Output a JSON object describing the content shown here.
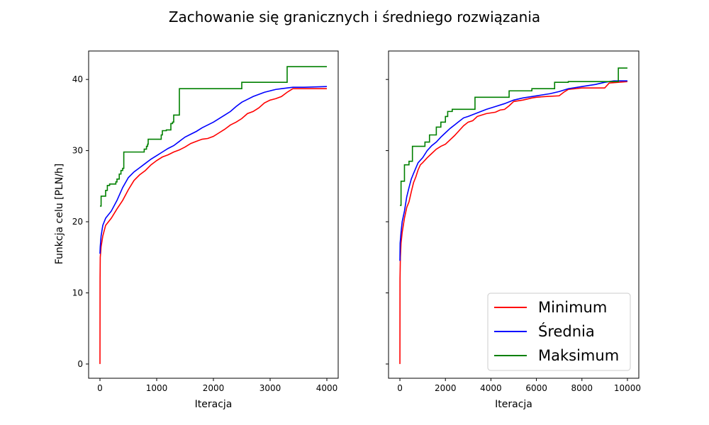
{
  "figure": {
    "title": "Zachowanie się granicznych i średniego rozwiązania",
    "ylabel": "Funkcja celu [PLN/h]"
  },
  "colors": {
    "Minimum": "#ff0000",
    "Średnia": "#0000ff",
    "Maksimum": "#008000"
  },
  "legend": {
    "entries": [
      "Minimum",
      "Średnia",
      "Maksimum"
    ],
    "placement": "lower-right"
  },
  "chart_data": [
    {
      "type": "line",
      "xlabel": "Iteracja",
      "ylabel": "Funkcja celu [PLN/h]",
      "xlim": [
        -200,
        4200
      ],
      "ylim": [
        -2,
        44
      ],
      "xticks": [
        0,
        1000,
        2000,
        3000,
        4000
      ],
      "yticks": [
        0,
        10,
        20,
        30,
        40
      ],
      "series": [
        {
          "name": "Minimum",
          "step": false,
          "points": [
            [
              0,
              0
            ],
            [
              2,
              12
            ],
            [
              5,
              15
            ],
            [
              20,
              16.5
            ],
            [
              50,
              18
            ],
            [
              100,
              19.5
            ],
            [
              200,
              20.5
            ],
            [
              300,
              21.8
            ],
            [
              400,
              23
            ],
            [
              500,
              24.5
            ],
            [
              600,
              25.8
            ],
            [
              700,
              26.6
            ],
            [
              800,
              27.2
            ],
            [
              900,
              28
            ],
            [
              1000,
              28.6
            ],
            [
              1100,
              29.1
            ],
            [
              1200,
              29.4
            ],
            [
              1300,
              29.8
            ],
            [
              1400,
              30.1
            ],
            [
              1500,
              30.5
            ],
            [
              1600,
              31
            ],
            [
              1700,
              31.3
            ],
            [
              1800,
              31.6
            ],
            [
              1900,
              31.7
            ],
            [
              2000,
              32
            ],
            [
              2100,
              32.5
            ],
            [
              2200,
              33
            ],
            [
              2300,
              33.6
            ],
            [
              2400,
              34
            ],
            [
              2500,
              34.5
            ],
            [
              2600,
              35.2
            ],
            [
              2700,
              35.5
            ],
            [
              2800,
              36
            ],
            [
              2900,
              36.7
            ],
            [
              3000,
              37.1
            ],
            [
              3100,
              37.3
            ],
            [
              3200,
              37.6
            ],
            [
              3300,
              38.2
            ],
            [
              3400,
              38.7
            ],
            [
              3500,
              38.7
            ],
            [
              4000,
              38.7
            ]
          ]
        },
        {
          "name": "Średnia",
          "step": false,
          "points": [
            [
              0,
              15.5
            ],
            [
              5,
              16.5
            ],
            [
              20,
              18
            ],
            [
              50,
              19.5
            ],
            [
              100,
              20.5
            ],
            [
              200,
              21.5
            ],
            [
              300,
              23
            ],
            [
              400,
              24.8
            ],
            [
              500,
              26.2
            ],
            [
              600,
              27
            ],
            [
              700,
              27.6
            ],
            [
              800,
              28.2
            ],
            [
              900,
              28.8
            ],
            [
              1000,
              29.3
            ],
            [
              1100,
              29.8
            ],
            [
              1200,
              30.3
            ],
            [
              1300,
              30.7
            ],
            [
              1400,
              31.3
            ],
            [
              1500,
              31.9
            ],
            [
              1600,
              32.3
            ],
            [
              1700,
              32.7
            ],
            [
              1800,
              33.2
            ],
            [
              1900,
              33.6
            ],
            [
              2000,
              34
            ],
            [
              2100,
              34.5
            ],
            [
              2200,
              35
            ],
            [
              2300,
              35.5
            ],
            [
              2400,
              36.2
            ],
            [
              2500,
              36.8
            ],
            [
              2600,
              37.2
            ],
            [
              2700,
              37.6
            ],
            [
              2800,
              37.9
            ],
            [
              2900,
              38.2
            ],
            [
              3000,
              38.4
            ],
            [
              3100,
              38.6
            ],
            [
              3200,
              38.7
            ],
            [
              3300,
              38.8
            ],
            [
              3400,
              38.9
            ],
            [
              3600,
              38.9
            ],
            [
              4000,
              39
            ]
          ]
        },
        {
          "name": "Maksimum",
          "step": true,
          "points": [
            [
              0,
              22.2
            ],
            [
              20,
              23.6
            ],
            [
              100,
              24.4
            ],
            [
              130,
              25.1
            ],
            [
              170,
              25.3
            ],
            [
              280,
              25.6
            ],
            [
              300,
              26
            ],
            [
              340,
              26.7
            ],
            [
              370,
              27.2
            ],
            [
              400,
              27.5
            ],
            [
              420,
              29.8
            ],
            [
              780,
              30.2
            ],
            [
              820,
              30.6
            ],
            [
              840,
              30.9
            ],
            [
              850,
              31.6
            ],
            [
              1080,
              32.2
            ],
            [
              1100,
              32.8
            ],
            [
              1170,
              32.9
            ],
            [
              1250,
              33.8
            ],
            [
              1280,
              34
            ],
            [
              1300,
              35
            ],
            [
              1400,
              38.7
            ],
            [
              2500,
              39.6
            ],
            [
              3300,
              41.8
            ],
            [
              4000,
              41.8
            ]
          ]
        }
      ]
    },
    {
      "type": "line",
      "xlabel": "Iteracja",
      "ylabel": "",
      "xlim": [
        -500,
        10500
      ],
      "ylim": [
        -2,
        44
      ],
      "xticks": [
        0,
        2000,
        4000,
        6000,
        8000,
        10000
      ],
      "yticks": [
        0,
        10,
        20,
        30,
        40
      ],
      "series": [
        {
          "name": "Minimum",
          "step": false,
          "points": [
            [
              0,
              0
            ],
            [
              5,
              12
            ],
            [
              20,
              15
            ],
            [
              50,
              17
            ],
            [
              100,
              18.5
            ],
            [
              200,
              20.5
            ],
            [
              300,
              22
            ],
            [
              400,
              22.8
            ],
            [
              500,
              24.2
            ],
            [
              600,
              25.5
            ],
            [
              700,
              26.3
            ],
            [
              800,
              27.3
            ],
            [
              900,
              28
            ],
            [
              1000,
              28.3
            ],
            [
              1200,
              29
            ],
            [
              1400,
              29.6
            ],
            [
              1600,
              30.2
            ],
            [
              1800,
              30.6
            ],
            [
              2000,
              30.9
            ],
            [
              2200,
              31.5
            ],
            [
              2400,
              32.1
            ],
            [
              2600,
              32.8
            ],
            [
              2800,
              33.5
            ],
            [
              3000,
              34
            ],
            [
              3200,
              34.2
            ],
            [
              3400,
              34.8
            ],
            [
              3600,
              35
            ],
            [
              3800,
              35.2
            ],
            [
              4000,
              35.3
            ],
            [
              4200,
              35.4
            ],
            [
              4400,
              35.7
            ],
            [
              4600,
              35.8
            ],
            [
              4800,
              36.3
            ],
            [
              5000,
              36.9
            ],
            [
              5400,
              37.1
            ],
            [
              5800,
              37.4
            ],
            [
              6000,
              37.5
            ],
            [
              6400,
              37.6
            ],
            [
              7000,
              37.7
            ],
            [
              7200,
              38.2
            ],
            [
              7400,
              38.6
            ],
            [
              8000,
              38.8
            ],
            [
              9000,
              38.8
            ],
            [
              9200,
              39.5
            ],
            [
              10000,
              39.7
            ]
          ]
        },
        {
          "name": "Średnia",
          "step": false,
          "points": [
            [
              0,
              14.5
            ],
            [
              10,
              17
            ],
            [
              50,
              18.5
            ],
            [
              100,
              20
            ],
            [
              200,
              21.5
            ],
            [
              300,
              23.5
            ],
            [
              400,
              24.8
            ],
            [
              500,
              26
            ],
            [
              600,
              26.8
            ],
            [
              800,
              28.3
            ],
            [
              1000,
              29
            ],
            [
              1200,
              30
            ],
            [
              1400,
              30.7
            ],
            [
              1600,
              31.2
            ],
            [
              1800,
              31.9
            ],
            [
              2000,
              32.5
            ],
            [
              2200,
              33.1
            ],
            [
              2400,
              33.6
            ],
            [
              2600,
              34.1
            ],
            [
              2800,
              34.6
            ],
            [
              3000,
              34.8
            ],
            [
              3400,
              35.3
            ],
            [
              3800,
              35.8
            ],
            [
              4200,
              36.2
            ],
            [
              4600,
              36.6
            ],
            [
              5000,
              37.1
            ],
            [
              5400,
              37.4
            ],
            [
              5800,
              37.6
            ],
            [
              6200,
              37.8
            ],
            [
              6600,
              38
            ],
            [
              7000,
              38.3
            ],
            [
              7400,
              38.7
            ],
            [
              8000,
              39
            ],
            [
              8600,
              39.3
            ],
            [
              9000,
              39.6
            ],
            [
              9400,
              39.8
            ],
            [
              10000,
              39.8
            ]
          ]
        },
        {
          "name": "Maksimum",
          "step": true,
          "points": [
            [
              0,
              22.3
            ],
            [
              50,
              25.7
            ],
            [
              200,
              28
            ],
            [
              400,
              28.5
            ],
            [
              550,
              30.6
            ],
            [
              1100,
              31.2
            ],
            [
              1300,
              32.2
            ],
            [
              1600,
              33.3
            ],
            [
              1800,
              34
            ],
            [
              2000,
              34.8
            ],
            [
              2100,
              35.5
            ],
            [
              2300,
              35.8
            ],
            [
              2500,
              35.8
            ],
            [
              3300,
              37.5
            ],
            [
              4800,
              38.4
            ],
            [
              5800,
              38.7
            ],
            [
              6800,
              39.6
            ],
            [
              7400,
              39.7
            ],
            [
              9000,
              39.7
            ],
            [
              9600,
              41.6
            ],
            [
              10000,
              41.6
            ]
          ]
        }
      ]
    }
  ]
}
